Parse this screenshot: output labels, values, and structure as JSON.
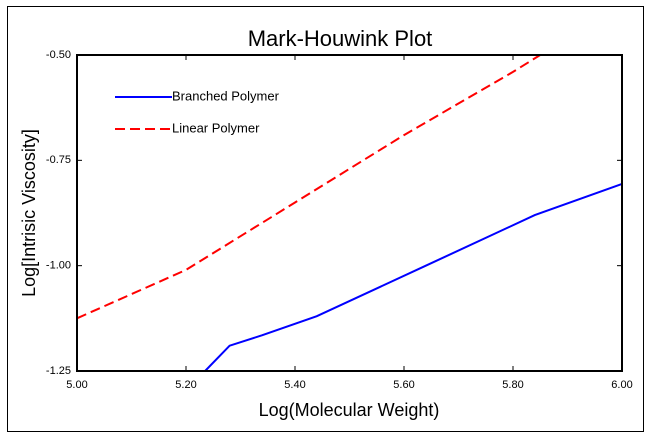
{
  "chart_data": {
    "type": "line",
    "title": "Mark-Houwink Plot",
    "x_label": "Log(Molecular Weight)",
    "y_label": "Log[Intrisic Viscosity]",
    "xlim": [
      5.0,
      6.0
    ],
    "ylim": [
      -1.25,
      -0.5
    ],
    "xticks": [
      {
        "value": 5.0,
        "label": "5.00"
      },
      {
        "value": 5.2,
        "label": "5.20"
      },
      {
        "value": 5.4,
        "label": "5.40"
      },
      {
        "value": 5.6,
        "label": "5.60"
      },
      {
        "value": 5.8,
        "label": "5.80"
      },
      {
        "value": 6.0,
        "label": "6.00"
      }
    ],
    "yticks": [
      {
        "value": -1.25,
        "label": "-1.25"
      },
      {
        "value": -1.0,
        "label": "-1.00"
      },
      {
        "value": -0.75,
        "label": "-0.75"
      },
      {
        "value": -0.5,
        "label": "-0.50"
      }
    ],
    "legend": "upper left",
    "series": [
      {
        "name": "Branched Polymer",
        "color": "#0000ff",
        "dash": "solid",
        "x": [
          5.16,
          5.235,
          5.28,
          5.34,
          5.44,
          5.64,
          5.84,
          6.0
        ],
        "values": [
          -1.25,
          -1.25,
          -1.19,
          -1.165,
          -1.12,
          -1.0,
          -0.88,
          -0.806
        ]
      },
      {
        "name": "Linear Polymer",
        "color": "#ff0000",
        "dash": "dashed",
        "x": [
          5.0,
          5.2,
          5.4,
          5.6,
          5.8,
          5.85
        ],
        "values": [
          -1.125,
          -1.01,
          -0.85,
          -0.69,
          -0.54,
          -0.5
        ]
      }
    ]
  }
}
